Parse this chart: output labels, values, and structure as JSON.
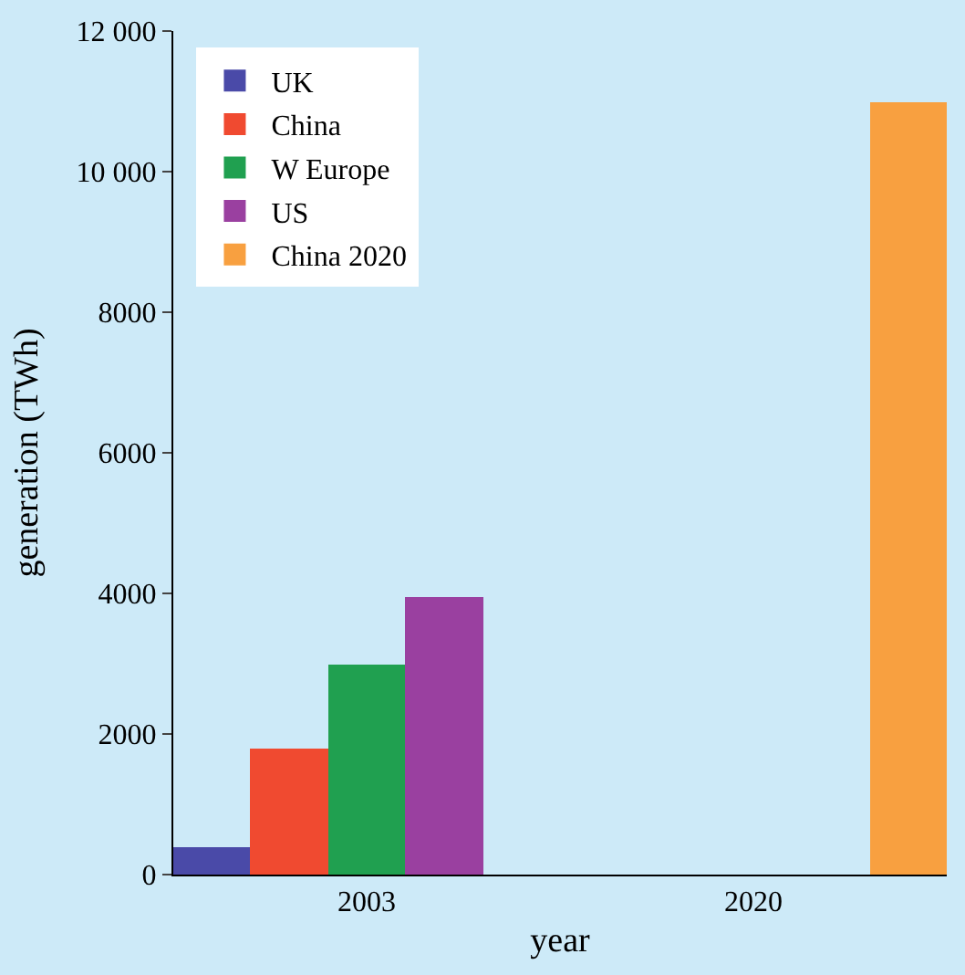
{
  "chart_data": {
    "type": "bar",
    "xlabel": "year",
    "ylabel": "generation (TWh)",
    "categories": [
      "2003",
      "2020"
    ],
    "series": [
      {
        "name": "UK",
        "color": "#4a4aa8",
        "values": [
          400,
          null
        ]
      },
      {
        "name": "China",
        "color": "#f04a30",
        "values": [
          1800,
          null
        ]
      },
      {
        "name": "W Europe",
        "color": "#20a050",
        "values": [
          3000,
          null
        ]
      },
      {
        "name": "US",
        "color": "#9a40a0",
        "values": [
          3950,
          null
        ]
      },
      {
        "name": "China 2020",
        "color": "#f8a040",
        "values": [
          null,
          11000
        ]
      }
    ],
    "ylim": [
      0,
      12000
    ],
    "yticks": [
      0,
      2000,
      4000,
      6000,
      8000,
      {
        "value": 10000,
        "label": "10 000"
      },
      {
        "value": 12000,
        "label": "12 000"
      }
    ],
    "grid": false,
    "legend": "top left"
  }
}
